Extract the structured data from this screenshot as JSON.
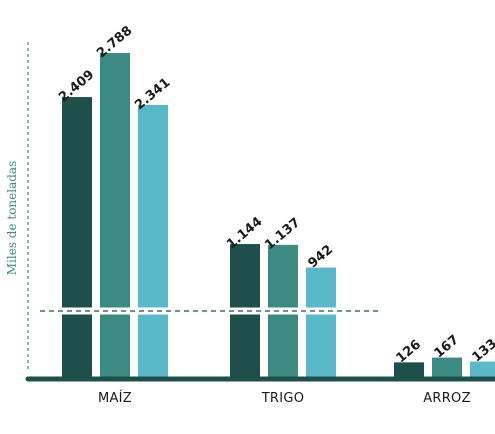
{
  "chart_data": {
    "type": "bar",
    "title": "",
    "ylabel": "Miles de toneladas",
    "xlabel": "",
    "categories": [
      "MAÍZ",
      "TRIGO",
      "ARROZ"
    ],
    "series": [
      {
        "color": "#1e4f4b",
        "values": [
          2409,
          1144,
          126
        ],
        "labels": [
          "2.409",
          "1.144",
          "126"
        ]
      },
      {
        "color": "#3d8a82",
        "values": [
          2788,
          1137,
          167
        ],
        "labels": [
          "2.788",
          "1.137",
          "167"
        ]
      },
      {
        "color": "#5bb8c9",
        "values": [
          2341,
          942,
          133
        ],
        "labels": [
          "2.341",
          "942",
          "133"
        ]
      }
    ],
    "axis_break": true,
    "grid": false,
    "legend": "none",
    "colors": {
      "axis": "#1e4f4b",
      "axis_label": "#3d8a82",
      "text": "#1a1a1a"
    }
  }
}
